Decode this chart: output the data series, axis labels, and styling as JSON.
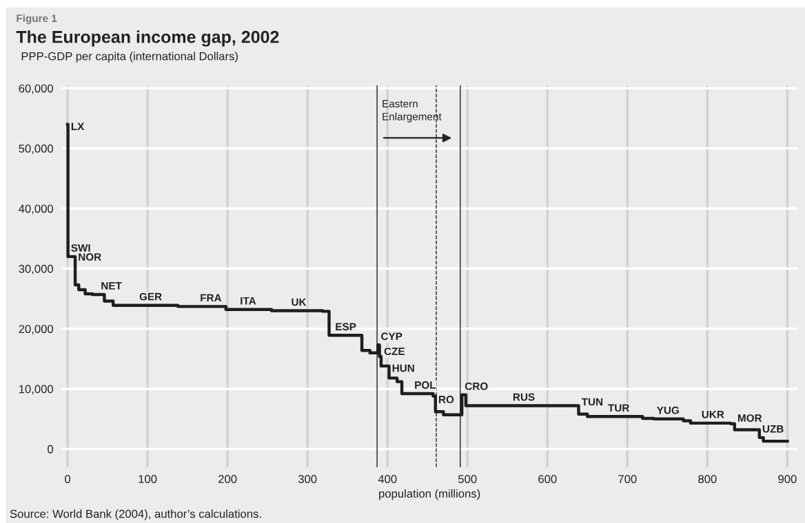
{
  "chart_data": {
    "type": "step",
    "title": "The European income gap, 2002",
    "subtitle": "Figure 1",
    "ylabel": "PPP-GDP per capita (international Dollars)",
    "xlabel": "population (millions)",
    "x": [
      0,
      0.5,
      9.5,
      14,
      22,
      31,
      46,
      57,
      138,
      198,
      255,
      319,
      327,
      368,
      378,
      388,
      390,
      392,
      402,
      412,
      418,
      457,
      460,
      470,
      493,
      498,
      639,
      650,
      719,
      733,
      770,
      779,
      829,
      834,
      865,
      870,
      900
    ],
    "series": [
      {
        "color": "#1e1e1e",
        "values": [
          54000,
          32000,
          27300,
          26500,
          25800,
          25700,
          24600,
          23900,
          23700,
          23200,
          23000,
          22900,
          18900,
          16400,
          16000,
          17300,
          15400,
          13800,
          11800,
          11200,
          9200,
          8800,
          6200,
          5700,
          9000,
          7200,
          5800,
          5400,
          5100,
          5000,
          4700,
          4300,
          4200,
          3200,
          1900,
          1300,
          1300
        ]
      }
    ],
    "xlim": [
      -8,
      913
    ],
    "ylim": [
      -3000,
      60500
    ],
    "xticks": [
      0,
      100,
      200,
      300,
      400,
      500,
      600,
      700,
      800,
      900
    ],
    "yticks": [
      {
        "value": 0,
        "label": "0"
      },
      {
        "value": 10000,
        "label": "10,000"
      },
      {
        "value": 20000,
        "label": "20,000"
      },
      {
        "value": 30000,
        "label": "30,000"
      },
      {
        "value": 40000,
        "label": "40,000"
      },
      {
        "value": 50000,
        "label": "50,000"
      },
      {
        "value": 60000,
        "label": "60,000"
      }
    ],
    "grid": true,
    "line_style": "solid",
    "marker": "none",
    "ref_lines": [
      {
        "axis": "x",
        "value": 387,
        "color": "#1e1e1e",
        "line_style": "solid",
        "label": "Eastern\nEnlargement"
      },
      {
        "axis": "x",
        "value": 461,
        "color": "#1e1e1e",
        "line_style": "dashed"
      },
      {
        "axis": "x",
        "value": 491,
        "color": "#1e1e1e",
        "line_style": "solid"
      }
    ],
    "annotations": [
      {
        "text": "LX",
        "x": 0.5,
        "y": 52200
      },
      {
        "text": "SWI",
        "x": 0.5,
        "y": 32000
      },
      {
        "text": "NOR",
        "x": 9.5,
        "y": 30500
      },
      {
        "text": "NET",
        "x": 38,
        "y": 25700
      },
      {
        "text": "GER",
        "x": 86,
        "y": 23900
      },
      {
        "text": "FRA",
        "x": 162,
        "y": 23700
      },
      {
        "text": "ITA",
        "x": 212,
        "y": 23200
      },
      {
        "text": "UK",
        "x": 276,
        "y": 23000
      },
      {
        "text": "ESP",
        "x": 331,
        "y": 18900
      },
      {
        "text": "CYP",
        "x": 388,
        "y": 17300
      },
      {
        "text": "CZE",
        "x": 392,
        "y": 14800
      },
      {
        "text": "HUN",
        "x": 402,
        "y": 12000
      },
      {
        "text": "POL",
        "x": 430,
        "y": 9200
      },
      {
        "text": "RO",
        "x": 460,
        "y": 6800
      },
      {
        "text": "CRO",
        "x": 493,
        "y": 9000
      },
      {
        "text": "RUS",
        "x": 553,
        "y": 7200
      },
      {
        "text": "TUN",
        "x": 639,
        "y": 6400
      },
      {
        "text": "TUR",
        "x": 672,
        "y": 5400
      },
      {
        "text": "YUG",
        "x": 733,
        "y": 5000
      },
      {
        "text": "UKR",
        "x": 789,
        "y": 4300
      },
      {
        "text": "MOR",
        "x": 834,
        "y": 3700
      },
      {
        "text": "UZB",
        "x": 865,
        "y": 1900
      },
      "Source: World Bank (2004), author’s calculations."
    ]
  }
}
